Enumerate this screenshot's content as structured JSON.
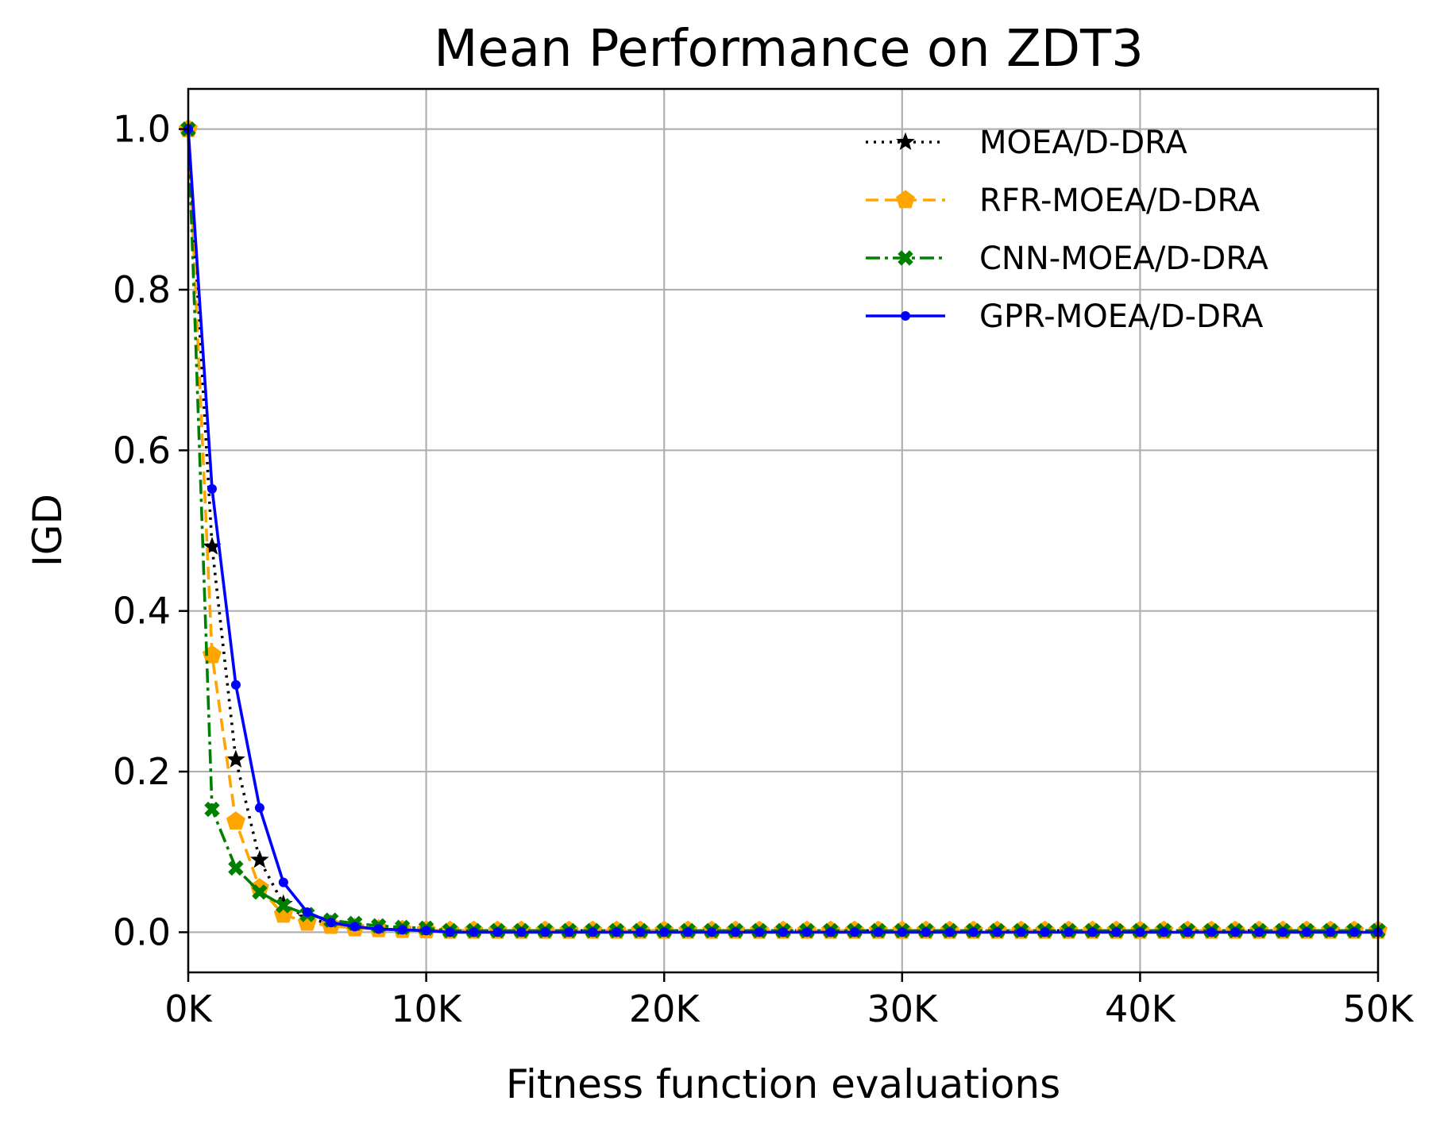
{
  "chart_data": {
    "type": "line",
    "title": "Mean Performance on ZDT3",
    "xlabel": "Fitness function evaluations",
    "ylabel": "IGD",
    "xlim": [
      0,
      50000
    ],
    "ylim": [
      -0.05,
      1.05
    ],
    "grid": true,
    "legend_position": "top-right",
    "x_ticks": [
      {
        "value": 0,
        "label": "0K"
      },
      {
        "value": 10000,
        "label": "10K"
      },
      {
        "value": 20000,
        "label": "20K"
      },
      {
        "value": 30000,
        "label": "30K"
      },
      {
        "value": 40000,
        "label": "40K"
      },
      {
        "value": 50000,
        "label": "50K"
      }
    ],
    "y_ticks": [
      {
        "value": 0.0,
        "label": "0.0"
      },
      {
        "value": 0.2,
        "label": "0.2"
      },
      {
        "value": 0.4,
        "label": "0.4"
      },
      {
        "value": 0.6,
        "label": "0.6"
      },
      {
        "value": 0.8,
        "label": "0.8"
      },
      {
        "value": 1.0,
        "label": "1.0"
      }
    ],
    "x_step": 1000,
    "series": [
      {
        "name": "MOEA/D-DRA",
        "color": "#000000",
        "line_style": "dotted",
        "marker": "star",
        "head": [
          1.0,
          0.48,
          0.215,
          0.09,
          0.035,
          0.018,
          0.01,
          0.006,
          0.004,
          0.003,
          0.0025
        ],
        "tail": 0.002
      },
      {
        "name": "RFR-MOEA/D-DRA",
        "color": "#ffa500",
        "line_style": "dashed",
        "marker": "pentagon",
        "head": [
          1.0,
          0.345,
          0.138,
          0.055,
          0.022,
          0.012,
          0.008,
          0.005,
          0.004,
          0.003,
          0.0025
        ],
        "tail": 0.002
      },
      {
        "name": "CNN-MOEA/D-DRA",
        "color": "#008000",
        "line_style": "dashdot",
        "marker": "x",
        "head": [
          1.0,
          0.153,
          0.08,
          0.05,
          0.033,
          0.022,
          0.015,
          0.011,
          0.008,
          0.006,
          0.005
        ],
        "tail": 0.002
      },
      {
        "name": "GPR-MOEA/D-DRA",
        "color": "#0000ff",
        "line_style": "solid",
        "marker": "dot",
        "head": [
          1.0,
          0.552,
          0.308,
          0.155,
          0.062,
          0.025,
          0.012,
          0.007,
          0.004,
          0.003,
          0.002
        ],
        "tail": 0.0
      }
    ]
  }
}
